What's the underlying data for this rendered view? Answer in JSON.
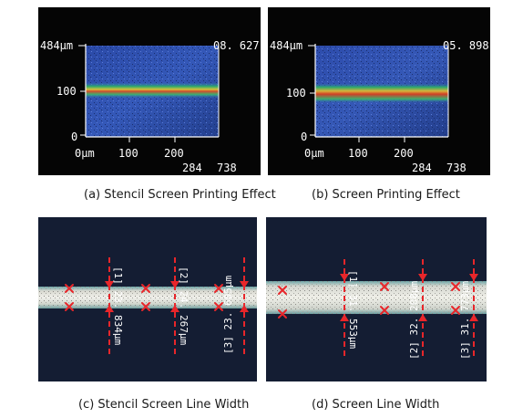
{
  "panels": {
    "a": {
      "caption": "(a) Stencil Screen Printing Effect",
      "y_max_label": "484μm",
      "y_mid_label": "100",
      "y_min_label": "0",
      "x_labels": [
        "0μm",
        "100",
        "200"
      ],
      "right_value": "08. 627",
      "bottom_label_1": "284",
      "bottom_label_2": "738"
    },
    "b": {
      "caption": "(b) Screen Printing Effect",
      "y_max_label": "484μm",
      "y_mid_label": "100",
      "y_min_label": "0",
      "x_labels": [
        "0μm",
        "100",
        "200"
      ],
      "right_value": "05. 898",
      "bottom_label_1": "284",
      "bottom_label_2": "738"
    },
    "c": {
      "caption": "(c) Stencil Screen Line Width",
      "measurements": [
        {
          "label": "[1] 23. 834μm"
        },
        {
          "label": "[2] 24. 267μm"
        },
        {
          "label": "[3] 23. 605μm"
        }
      ]
    },
    "d": {
      "caption": "(d) Screen Line Width",
      "measurements": [
        {
          "label": "[1] 31. 553μm"
        },
        {
          "label": "[2] 32. 208μm"
        },
        {
          "label": "[3] 31. 773μm"
        }
      ]
    }
  },
  "colors": {
    "profile_bg": "#2f4fb0",
    "marker": "#e8262a",
    "dark_bg": "#101827"
  }
}
